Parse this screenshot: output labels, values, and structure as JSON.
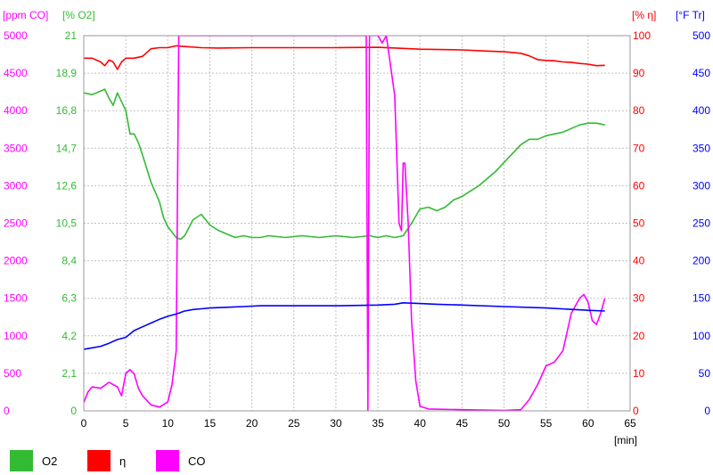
{
  "chart_data": {
    "type": "line",
    "x": {
      "label": "[min]",
      "range": [
        0,
        65
      ],
      "ticks": [
        "0",
        "5",
        "10",
        "15",
        "20",
        "25",
        "30",
        "35",
        "40",
        "45",
        "50",
        "55",
        "60",
        "65"
      ]
    },
    "axes": {
      "co": {
        "title": "[ppm CO]",
        "range": [
          0,
          5000
        ],
        "color": "#ff00ff",
        "ticks": [
          "0",
          "500",
          "1000",
          "1500",
          "2000",
          "2500",
          "3000",
          "3500",
          "4000",
          "4500",
          "5000"
        ]
      },
      "o2": {
        "title": "[% O2]",
        "range": [
          0,
          21
        ],
        "color": "#33bb33",
        "ticks": [
          "0",
          "2,1",
          "4,2",
          "6,3",
          "8,4",
          "10,5",
          "12,6",
          "14,7",
          "16,8",
          "18,9",
          "21"
        ]
      },
      "eta": {
        "title": "[% η]",
        "range": [
          0,
          100
        ],
        "color": "#ff0000",
        "ticks": [
          "0",
          "10",
          "20",
          "30",
          "40",
          "50",
          "60",
          "70",
          "80",
          "90",
          "100"
        ]
      },
      "tr": {
        "title": "[°F Tr]",
        "range": [
          0,
          500
        ],
        "color": "#0000ff",
        "ticks": [
          "0",
          "50",
          "100",
          "150",
          "200",
          "250",
          "300",
          "350",
          "400",
          "450",
          "500"
        ]
      }
    },
    "grid": true,
    "legend_position": "bottom",
    "series": [
      {
        "name": "O2",
        "axis": "o2",
        "color": "#33bb33",
        "points": [
          [
            0,
            17.8
          ],
          [
            1,
            17.7
          ],
          [
            2,
            17.9
          ],
          [
            2.5,
            18.0
          ],
          [
            3,
            17.5
          ],
          [
            3.5,
            17.1
          ],
          [
            4,
            17.8
          ],
          [
            5,
            16.8
          ],
          [
            5.5,
            15.5
          ],
          [
            6,
            15.5
          ],
          [
            6.5,
            15.0
          ],
          [
            7,
            14.3
          ],
          [
            8,
            12.8
          ],
          [
            9,
            11.7
          ],
          [
            9.5,
            10.8
          ],
          [
            10,
            10.3
          ],
          [
            10.5,
            10.0
          ],
          [
            11,
            9.7
          ],
          [
            11.5,
            9.6
          ],
          [
            12,
            9.8
          ],
          [
            13,
            10.7
          ],
          [
            14,
            11.0
          ],
          [
            15,
            10.4
          ],
          [
            16,
            10.1
          ],
          [
            17,
            9.9
          ],
          [
            18,
            9.7
          ],
          [
            19,
            9.8
          ],
          [
            20,
            9.7
          ],
          [
            21,
            9.7
          ],
          [
            22,
            9.8
          ],
          [
            24,
            9.7
          ],
          [
            26,
            9.8
          ],
          [
            28,
            9.7
          ],
          [
            30,
            9.8
          ],
          [
            32,
            9.7
          ],
          [
            34,
            9.8
          ],
          [
            35,
            9.7
          ],
          [
            36,
            9.8
          ],
          [
            37,
            9.7
          ],
          [
            38,
            9.8
          ],
          [
            39,
            10.5
          ],
          [
            40,
            11.3
          ],
          [
            41,
            11.4
          ],
          [
            42,
            11.2
          ],
          [
            43,
            11.4
          ],
          [
            44,
            11.8
          ],
          [
            45,
            12.0
          ],
          [
            46,
            12.3
          ],
          [
            47,
            12.6
          ],
          [
            48,
            13.0
          ],
          [
            49,
            13.4
          ],
          [
            50,
            13.9
          ],
          [
            51,
            14.4
          ],
          [
            52,
            14.9
          ],
          [
            53,
            15.2
          ],
          [
            54,
            15.2
          ],
          [
            55,
            15.4
          ],
          [
            56,
            15.5
          ],
          [
            57,
            15.6
          ],
          [
            58,
            15.8
          ],
          [
            59,
            16.0
          ],
          [
            60,
            16.1
          ],
          [
            61,
            16.1
          ],
          [
            62,
            16.0
          ]
        ]
      },
      {
        "name": "η",
        "axis": "eta",
        "color": "#ff0000",
        "points": [
          [
            0,
            94
          ],
          [
            1,
            94
          ],
          [
            2,
            93
          ],
          [
            2.5,
            92
          ],
          [
            3,
            93.5
          ],
          [
            3.5,
            93
          ],
          [
            4,
            91
          ],
          [
            4.5,
            93
          ],
          [
            5,
            94
          ],
          [
            6,
            94
          ],
          [
            7,
            94.5
          ],
          [
            8,
            96.5
          ],
          [
            9,
            96.8
          ],
          [
            10,
            96.8
          ],
          [
            11,
            97.3
          ],
          [
            12,
            97.1
          ],
          [
            14,
            96.8
          ],
          [
            16,
            96.7
          ],
          [
            20,
            96.8
          ],
          [
            25,
            96.8
          ],
          [
            30,
            96.8
          ],
          [
            35,
            96.9
          ],
          [
            38,
            96.6
          ],
          [
            40,
            96.4
          ],
          [
            45,
            96.2
          ],
          [
            48,
            95.9
          ],
          [
            50,
            95.7
          ],
          [
            52,
            95.3
          ],
          [
            53,
            94.6
          ],
          [
            54,
            93.6
          ],
          [
            55,
            93.4
          ],
          [
            56,
            93.3
          ],
          [
            57,
            93.0
          ],
          [
            58,
            92.9
          ],
          [
            59,
            92.6
          ],
          [
            60,
            92.4
          ],
          [
            61,
            92.0
          ],
          [
            62,
            92.1
          ]
        ]
      },
      {
        "name": "CO",
        "axis": "co",
        "color": "#ff00ff",
        "points": [
          [
            0,
            110
          ],
          [
            0.5,
            250
          ],
          [
            1,
            320
          ],
          [
            2,
            300
          ],
          [
            3,
            380
          ],
          [
            4,
            320
          ],
          [
            4.5,
            200
          ],
          [
            5,
            500
          ],
          [
            5.5,
            550
          ],
          [
            6,
            490
          ],
          [
            6.5,
            300
          ],
          [
            7,
            200
          ],
          [
            8,
            80
          ],
          [
            9,
            50
          ],
          [
            10,
            120
          ],
          [
            10.5,
            350
          ],
          [
            11,
            800
          ],
          [
            11.3,
            5000
          ],
          [
            33.6,
            5000
          ],
          [
            33.8,
            0
          ],
          [
            34,
            5000
          ],
          [
            35,
            5000
          ],
          [
            35.5,
            4900
          ],
          [
            36,
            5000
          ],
          [
            37,
            4200
          ],
          [
            37.5,
            2500
          ],
          [
            37.8,
            2400
          ],
          [
            38,
            3300
          ],
          [
            38.2,
            3300
          ],
          [
            38.6,
            2500
          ],
          [
            39,
            1200
          ],
          [
            39.5,
            400
          ],
          [
            40,
            60
          ],
          [
            41,
            25
          ],
          [
            45,
            15
          ],
          [
            50,
            5
          ],
          [
            52,
            15
          ],
          [
            53,
            150
          ],
          [
            54,
            350
          ],
          [
            55,
            600
          ],
          [
            56,
            650
          ],
          [
            57,
            800
          ],
          [
            58,
            1300
          ],
          [
            59,
            1500
          ],
          [
            59.5,
            1550
          ],
          [
            60,
            1450
          ],
          [
            60.5,
            1200
          ],
          [
            61,
            1150
          ],
          [
            61.5,
            1300
          ],
          [
            62,
            1500
          ]
        ]
      },
      {
        "name": "",
        "axis": "tr",
        "color": "#0000ff",
        "points": [
          [
            0,
            82
          ],
          [
            1,
            84
          ],
          [
            2,
            86
          ],
          [
            3,
            90
          ],
          [
            4,
            95
          ],
          [
            5,
            98
          ],
          [
            6,
            107
          ],
          [
            7,
            112
          ],
          [
            8,
            117
          ],
          [
            9,
            122
          ],
          [
            10,
            126
          ],
          [
            11,
            129
          ],
          [
            12,
            133
          ],
          [
            13,
            135
          ],
          [
            14,
            136
          ],
          [
            15,
            137
          ],
          [
            17,
            138
          ],
          [
            19,
            139
          ],
          [
            21,
            140
          ],
          [
            25,
            140
          ],
          [
            30,
            140
          ],
          [
            35,
            141
          ],
          [
            37,
            142
          ],
          [
            38,
            144
          ],
          [
            40,
            143
          ],
          [
            42,
            142
          ],
          [
            45,
            141
          ],
          [
            50,
            139
          ],
          [
            55,
            137
          ],
          [
            60,
            134
          ],
          [
            62,
            133
          ]
        ]
      }
    ]
  }
}
